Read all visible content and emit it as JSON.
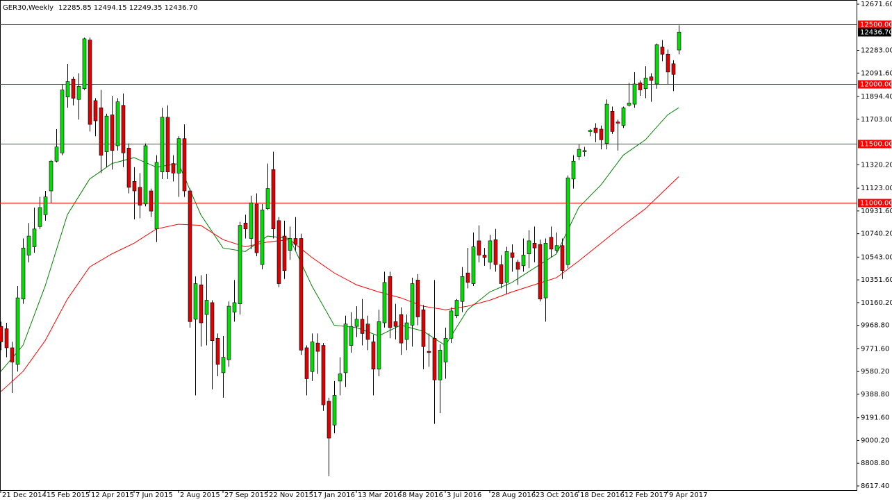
{
  "chart_data": {
    "type": "candlestick",
    "title": "GER30,Weekly",
    "header_values": "12285.85 12494.15 12249.35 12436.70",
    "categories": [
      "21 Dec 2014",
      null,
      null,
      null,
      null,
      null,
      null,
      null,
      "15 Feb 2015",
      null,
      null,
      null,
      null,
      null,
      null,
      null,
      "12 Apr 2015",
      null,
      null,
      null,
      null,
      null,
      null,
      null,
      "7 Jun 2015",
      null,
      null,
      null,
      null,
      null,
      null,
      null,
      "2 Aug 2015",
      null,
      null,
      null,
      null,
      null,
      null,
      null,
      "27 Sep 2015",
      null,
      null,
      null,
      null,
      null,
      null,
      null,
      "22 Nov 2015",
      null,
      null,
      null,
      null,
      null,
      null,
      null,
      "17 Jan 2016",
      null,
      null,
      null,
      null,
      null,
      null,
      null,
      "13 Mar 2016",
      null,
      null,
      null,
      null,
      null,
      null,
      null,
      "8 May 2016",
      null,
      null,
      null,
      null,
      null,
      null,
      null,
      "3 Jul 2016",
      null,
      null,
      null,
      null,
      null,
      null,
      null,
      "28 Aug 2016",
      null,
      null,
      null,
      null,
      null,
      null,
      null,
      "23 Oct 2016",
      null,
      null,
      null,
      null,
      null,
      null,
      null,
      "18 Dec 2016",
      null,
      null,
      null,
      null,
      null,
      null,
      null,
      "12 Feb 2017",
      null,
      null,
      null,
      null,
      null,
      null,
      null,
      "9 Apr 2017",
      null,
      null
    ],
    "open": [
      9960,
      9940,
      9780,
      9640,
      10190,
      10560,
      10630,
      10800,
      10900,
      11100,
      11350,
      11420,
      11890,
      12040,
      11870,
      11960,
      12370,
      11860,
      11800,
      11430,
      11740,
      11480,
      11820,
      11460,
      11180,
      11130,
      10990,
      11100,
      10780,
      11260,
      11720,
      11330,
      11250,
      11540,
      11100,
      10020,
      10310,
      10060,
      10160,
      9860,
      9570,
      9680,
      10080,
      10150,
      10830,
      10700,
      10990,
      10480,
      10950,
      11280,
      10850,
      10720,
      10600,
      10700,
      10700,
      9780,
      9580,
      9820,
      9800,
      9330,
      9130,
      9500,
      9570,
      9800,
      9960,
      10020,
      9980,
      9830,
      9600,
      9990,
      10380,
      10000,
      10060,
      9850,
      9970,
      10350,
      10100,
      9750,
      9860,
      9510,
      9660,
      9860,
      10050,
      10170,
      10410,
      10320,
      10680,
      10560,
      10500,
      10690,
      10480,
      10330,
      10580,
      10500,
      10470,
      10570,
      10660,
      10650,
      10200,
      10710,
      10600,
      10640,
      10480,
      11200,
      11390,
      11430,
      11600,
      11630,
      11620,
      11500,
      11770,
      11680,
      11650,
      11820,
      11830,
      12010,
      11960,
      12060,
      12000,
      12310,
      12250,
      12170,
      12285.85
    ],
    "high": [
      10000,
      9990,
      9830,
      10300,
      10700,
      10830,
      10960,
      11050,
      11100,
      11360,
      11620,
      12000,
      12170,
      12060,
      12090,
      12390,
      12390,
      11880,
      11950,
      11750,
      11900,
      11880,
      11920,
      11500,
      11300,
      11250,
      11500,
      11120,
      11400,
      11800,
      11820,
      11400,
      11560,
      11660,
      11120,
      10380,
      10390,
      10400,
      10180,
      9900,
      9880,
      10170,
      10350,
      10840,
      10900,
      11060,
      11080,
      10990,
      11330,
      11430,
      10880,
      10850,
      10800,
      10880,
      10740,
      9800,
      9900,
      9900,
      9820,
      9360,
      9500,
      9700,
      10050,
      10080,
      10130,
      10190,
      10050,
      9890,
      10100,
      10420,
      10420,
      10150,
      10120,
      10060,
      10370,
      10400,
      10140,
      9900,
      10350,
      9810,
      9950,
      10120,
      10190,
      10460,
      10620,
      10750,
      10810,
      10620,
      10730,
      10780,
      10560,
      10630,
      10650,
      10520,
      10700,
      10770,
      10800,
      10690,
      10700,
      10800,
      10750,
      10700,
      11230,
      11400,
      11490,
      11470,
      11620,
      11670,
      11650,
      11870,
      11810,
      11700,
      11810,
      12010,
      12100,
      12030,
      12150,
      12090,
      12340,
      12370,
      12290,
      12200,
      12494.15
    ],
    "low": [
      9760,
      9700,
      9400,
      9580,
      10150,
      10500,
      10580,
      10780,
      10850,
      11000,
      11340,
      11400,
      11800,
      11820,
      11700,
      11950,
      11600,
      11560,
      11250,
      11300,
      11280,
      11440,
      11300,
      11080,
      10860,
      10870,
      10970,
      10880,
      10670,
      11200,
      11200,
      11180,
      11050,
      11050,
      9950,
      9380,
      9790,
      9800,
      9430,
      9540,
      9360,
      9620,
      10000,
      10060,
      10700,
      10610,
      10550,
      10440,
      10940,
      10700,
      10290,
      10360,
      10520,
      10600,
      9720,
      9380,
      9500,
      9560,
      9250,
      8700,
      9060,
      9380,
      9450,
      9740,
      9870,
      9800,
      9760,
      9380,
      9540,
      9950,
      9860,
      9850,
      9720,
      9760,
      9790,
      9970,
      9600,
      9620,
      9140,
      9230,
      9520,
      9820,
      10030,
      10080,
      10280,
      10300,
      10500,
      10470,
      10440,
      10420,
      10280,
      10230,
      10420,
      10310,
      10420,
      10450,
      10500,
      10170,
      10000,
      10540,
      10580,
      10360,
      10450,
      11120,
      11360,
      11390,
      11560,
      11510,
      11450,
      11450,
      11580,
      11440,
      11630,
      11810,
      11800,
      11900,
      11880,
      11850,
      11960,
      12190,
      12000,
      11940,
      12249.35
    ],
    "close": [
      9830,
      9780,
      9660,
      10200,
      10620,
      10720,
      10780,
      10960,
      11050,
      11350,
      11470,
      11950,
      12020,
      11880,
      11980,
      12380,
      11660,
      11690,
      11400,
      11730,
      11440,
      11850,
      11420,
      11130,
      11100,
      10980,
      11480,
      10930,
      11340,
      11720,
      11260,
      11250,
      11540,
      11100,
      10000,
      10320,
      9990,
      10180,
      9840,
      9640,
      9700,
      10130,
      10160,
      10810,
      10780,
      11000,
      10580,
      10940,
      11120,
      10780,
      10320,
      10430,
      10700,
      10650,
      9760,
      9520,
      9830,
      9750,
      9300,
      9020,
      9380,
      9560,
      9980,
      9960,
      10020,
      9900,
      9850,
      9600,
      10000,
      10330,
      9950,
      9960,
      9820,
      9990,
      10320,
      10040,
      9790,
      9740,
      9510,
      9760,
      9860,
      10090,
      10180,
      10380,
      10330,
      10630,
      10560,
      10540,
      10680,
      10480,
      10320,
      10590,
      10540,
      10440,
      10560,
      10680,
      10620,
      10190,
      10660,
      10610,
      10640,
      10430,
      11210,
      11350,
      11450,
      11440,
      11610,
      11590,
      11530,
      11830,
      11600,
      11670,
      11800,
      11840,
      12000,
      11950,
      12050,
      12030,
      12330,
      12250,
      12100,
      12080,
      12436.7
    ],
    "up_color": "#00dd00",
    "down_color": "#dd0000",
    "ma": [
      {
        "color": "#008000",
        "x": [
          0,
          4,
          8,
          12,
          16,
          20,
          24,
          28,
          32,
          36,
          40,
          44,
          48,
          52,
          56,
          60,
          64,
          68,
          72,
          76,
          80,
          84,
          88,
          92,
          96,
          100,
          104,
          108,
          112,
          116,
          120,
          122
        ],
        "values": [
          9580,
          9800,
          10300,
          10900,
          11200,
          11330,
          11380,
          11300,
          11330,
          10900,
          10620,
          10590,
          10720,
          10700,
          10300,
          9970,
          9950,
          9880,
          9970,
          9920,
          9800,
          10100,
          10250,
          10330,
          10450,
          10570,
          10960,
          11150,
          11400,
          11530,
          11740,
          11800
        ]
      },
      {
        "color": "#ff0000",
        "x": [
          0,
          4,
          8,
          12,
          16,
          20,
          24,
          28,
          32,
          36,
          40,
          44,
          48,
          52,
          56,
          60,
          64,
          68,
          72,
          76,
          80,
          84,
          88,
          92,
          96,
          100,
          104,
          108,
          112,
          116,
          120,
          122
        ],
        "values": [
          9410,
          9580,
          9840,
          10190,
          10460,
          10570,
          10660,
          10780,
          10820,
          10810,
          10690,
          10630,
          10670,
          10690,
          10540,
          10410,
          10310,
          10250,
          10200,
          10130,
          10100,
          10130,
          10180,
          10250,
          10310,
          10370,
          10510,
          10660,
          10810,
          10950,
          11130,
          11220
        ]
      }
    ],
    "levels": [
      {
        "value": 12500,
        "label": "12500.00"
      },
      {
        "value": 12000,
        "label": "12000.00"
      },
      {
        "value": 11500,
        "label": "11500.00"
      },
      {
        "value": 11000,
        "label": "11000.00"
      }
    ],
    "level_color": "#ff0000",
    "last_price": {
      "value": 12436.7,
      "label": "12436.70"
    },
    "ylim": [
      8582.3,
      12706.6
    ],
    "yticks": [
      {
        "value": 12671.6,
        "label": "12671.60"
      },
      {
        "value": 12283,
        "label": "12283.00"
      },
      {
        "value": 12091.6,
        "label": "12091.60"
      },
      {
        "value": 11894.4,
        "label": "11894.40"
      },
      {
        "value": 11703,
        "label": "11703.00"
      },
      {
        "value": 11320.2,
        "label": "11320.20"
      },
      {
        "value": 11123,
        "label": "11123.00"
      },
      {
        "value": 10931.6,
        "label": "10931.60"
      },
      {
        "value": 10740.2,
        "label": "10740.20"
      },
      {
        "value": 10543,
        "label": "10543.00"
      },
      {
        "value": 10351.6,
        "label": "10351.60"
      },
      {
        "value": 10160.2,
        "label": "10160.20"
      },
      {
        "value": 9968.8,
        "label": "9968.80"
      },
      {
        "value": 9771.6,
        "label": "9771.60"
      },
      {
        "value": 9580.2,
        "label": "9580.20"
      },
      {
        "value": 9388.8,
        "label": "9388.80"
      },
      {
        "value": 9191.6,
        "label": "9191.60"
      },
      {
        "value": 9000.2,
        "label": "9000.20"
      },
      {
        "value": 8808.8,
        "label": "8808.80"
      },
      {
        "value": 8617.4,
        "label": "8617.40"
      }
    ]
  }
}
